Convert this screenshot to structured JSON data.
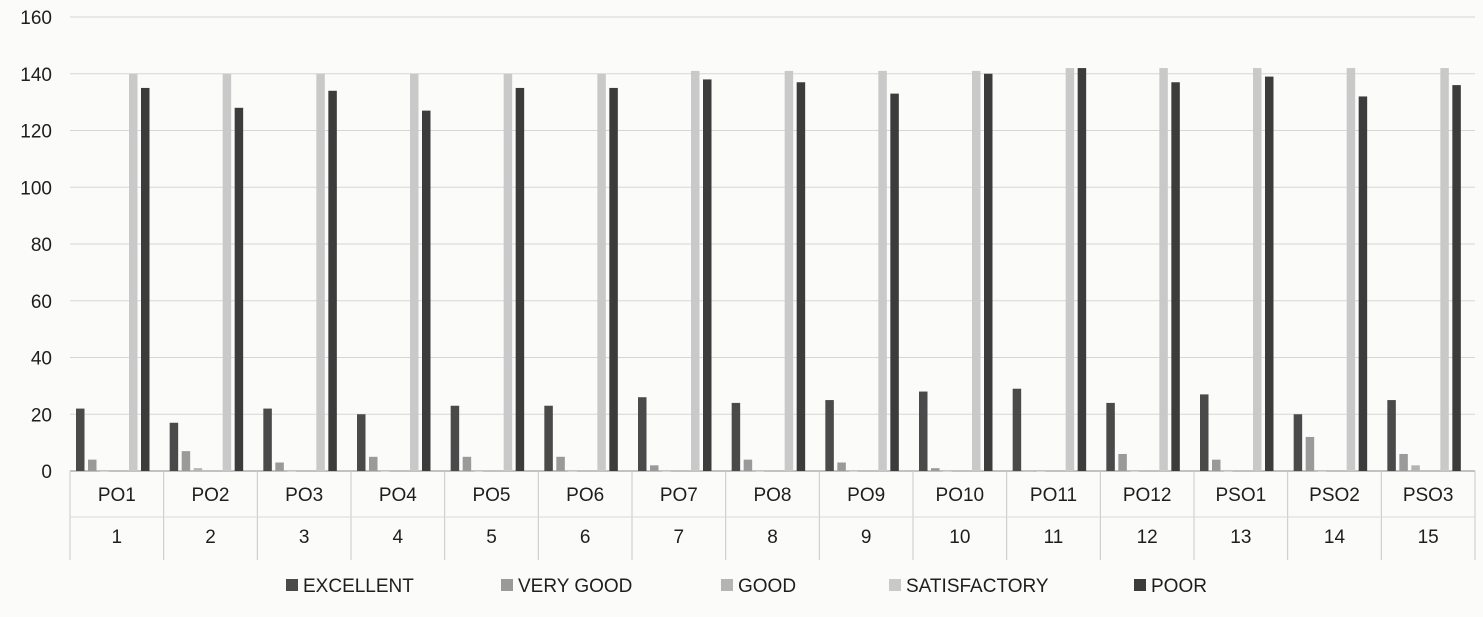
{
  "chart_data": {
    "type": "bar",
    "title": "",
    "xlabel": "",
    "ylabel": "",
    "ylim": [
      0,
      160
    ],
    "yticks": [
      0,
      20,
      40,
      60,
      80,
      100,
      120,
      140,
      160
    ],
    "grid": true,
    "legend_position": "bottom",
    "categories": [
      "PO1",
      "PO2",
      "PO3",
      "PO4",
      "PO5",
      "PO6",
      "PO7",
      "PO8",
      "PO9",
      "PO10",
      "PO11",
      "PO12",
      "PSO1",
      "PSO2",
      "PSO3"
    ],
    "category_numbers": [
      "1",
      "2",
      "3",
      "4",
      "5",
      "6",
      "7",
      "8",
      "9",
      "10",
      "11",
      "12",
      "13",
      "14",
      "15"
    ],
    "series": [
      {
        "name": "EXCELLENT",
        "color": "#4a4a4a",
        "values": [
          22,
          17,
          22,
          20,
          23,
          23,
          26,
          24,
          25,
          28,
          29,
          24,
          27,
          20,
          25
        ]
      },
      {
        "name": "VERY GOOD",
        "color": "#9a9a9a",
        "values": [
          4,
          7,
          3,
          5,
          5,
          5,
          2,
          4,
          3,
          1,
          0,
          6,
          4,
          12,
          6
        ]
      },
      {
        "name": "GOOD",
        "color": "#b4b4b4",
        "values": [
          0,
          1,
          0,
          0,
          0,
          0,
          0,
          0,
          0,
          0,
          0,
          0,
          0,
          0,
          2
        ]
      },
      {
        "name": "SATISFACTORY",
        "color": "#c9c9c9",
        "values": [
          140,
          140,
          140,
          140,
          140,
          140,
          141,
          141,
          141,
          141,
          142,
          142,
          142,
          142,
          142
        ]
      },
      {
        "name": "POOR",
        "color": "#3c3c3c",
        "values": [
          135,
          128,
          134,
          127,
          135,
          135,
          138,
          137,
          133,
          140,
          142,
          137,
          139,
          132,
          136
        ]
      }
    ]
  }
}
